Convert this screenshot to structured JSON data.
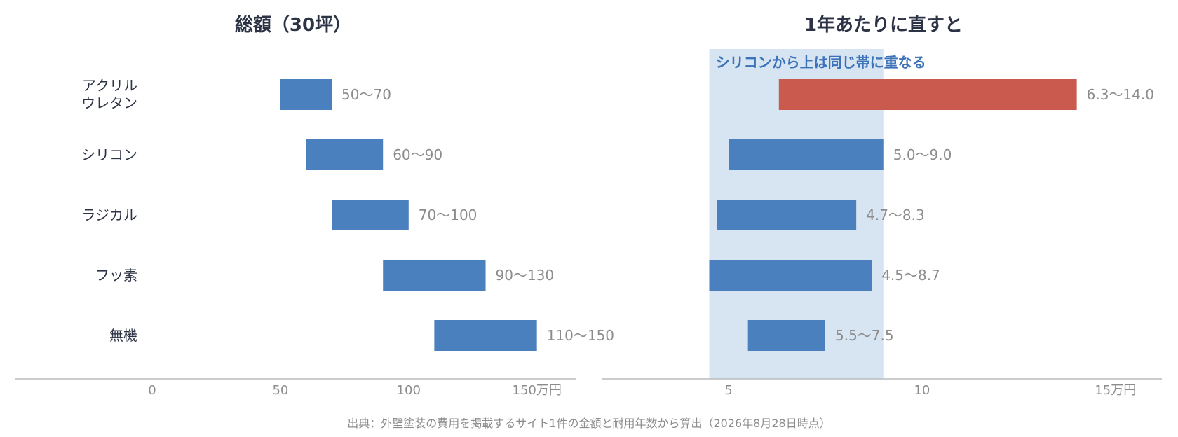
{
  "source_note": "出典：外壁塗装の費用を掲載するサイト1件の金額と耐用年数から算出（2026年8月28日時点）",
  "colors": {
    "bar": "#4a80bd",
    "highlight": "#c9564a",
    "band": "#d7e4f2",
    "band_label": "#3b72b8",
    "axis": "#bbbbbb"
  },
  "chart_data": [
    {
      "type": "bar",
      "orientation": "horizontal-range",
      "title": "総額（30坪）",
      "categories": [
        [
          "アクリル",
          "ウレタン"
        ],
        [
          "シリコン"
        ],
        [
          "ラジカル"
        ],
        [
          "フッ素"
        ],
        [
          "無機"
        ]
      ],
      "ranges": [
        [
          50,
          70
        ],
        [
          60,
          90
        ],
        [
          70,
          100
        ],
        [
          90,
          130
        ],
        [
          110,
          150
        ]
      ],
      "value_labels": [
        "50〜70",
        "60〜90",
        "70〜100",
        "90〜130",
        "110〜150"
      ],
      "xlim": [
        0,
        190
      ],
      "ticks": [
        {
          "value": 0,
          "label": "0"
        },
        {
          "value": 50,
          "label": "50"
        },
        {
          "value": 100,
          "label": "100"
        },
        {
          "value": 150,
          "label": "150万円"
        }
      ],
      "grid": false
    },
    {
      "type": "bar",
      "orientation": "horizontal-range",
      "title": "1年あたりに直すと",
      "categories": [
        [
          "アクリル",
          "ウレタン"
        ],
        [
          "シリコン"
        ],
        [
          "ラジカル"
        ],
        [
          "フッ素"
        ],
        [
          "無機"
        ]
      ],
      "ranges": [
        [
          6.3,
          14.0
        ],
        [
          5.0,
          9.0
        ],
        [
          4.7,
          8.3
        ],
        [
          4.5,
          8.7
        ],
        [
          5.5,
          7.5
        ]
      ],
      "value_labels": [
        "6.3〜14.0",
        "5.0〜9.0",
        "4.7〜8.3",
        "4.5〜8.7",
        "5.5〜7.5"
      ],
      "highlight_index": 0,
      "xlim": [
        1.7,
        16.2
      ],
      "band": {
        "from": 4.5,
        "to": 9.0,
        "label": "シリコンから上は同じ帯に重なる"
      },
      "ticks": [
        {
          "value": 5,
          "label": "5"
        },
        {
          "value": 10,
          "label": "10"
        },
        {
          "value": 15,
          "label": "15万円"
        }
      ],
      "grid": false
    }
  ]
}
